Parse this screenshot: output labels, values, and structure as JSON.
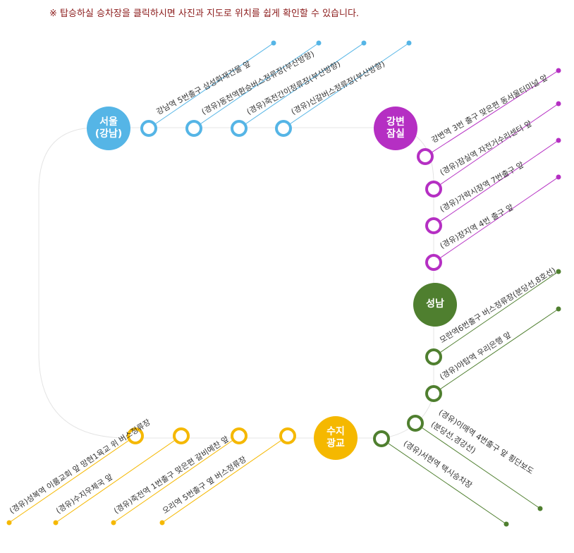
{
  "notice": "※ 탑승하실 승차장을 클릭하시면 사진과 지도로 위치를 쉽게 확인할 수 있습니다.",
  "colors": {
    "blue": "#55b5e6",
    "purple": "#b52fc3",
    "green": "#4f7f2f",
    "yellow": "#f5b800",
    "track": "#e4e4e4"
  },
  "hubs": {
    "seoul": [
      "서울",
      "(강남)"
    ],
    "gangbyeon": [
      "강변",
      "잠실"
    ],
    "seongnam": [
      "성남"
    ],
    "suji": [
      "수지",
      "광교"
    ]
  },
  "seoul_stops": [
    "강남역 5번출구 삼성화재건물 앞",
    "(경유)동천역환승버스정류장(부산방향)",
    "(경유)죽전간이정류장(부산방향)",
    "(경유)신갈버스정류장(부산방향)"
  ],
  "gangbyeon_stops": [
    "강변역 3번 출구 맞은편 동서울터미널 앞",
    "(경유)잠실역 자전거수리센터 앞",
    "(경유)가락시장역 7번출구 앞",
    "(경유)장지역 4번 출구 앞"
  ],
  "seongnam_stops": [
    "모란역6번출구 버스정류장(분당선,8호선)",
    "(경유)야탑역 우리은행 앞"
  ],
  "suji_stops": [
    "(경유)성복역 이룸교회 앞 망현1육교 위 버스정류장",
    "(경유)수지우체국 앞",
    "(경유)죽전역 1번출구 맞은편 갈비예찬 앞",
    "오리역 5번출구 옆 버스정류장"
  ],
  "green_lower_stops": [
    "(경유)서현역 택시승차장",
    "(경유)이매역 4번출구 앞 횡단보도",
    "(분당선,경강선)"
  ]
}
